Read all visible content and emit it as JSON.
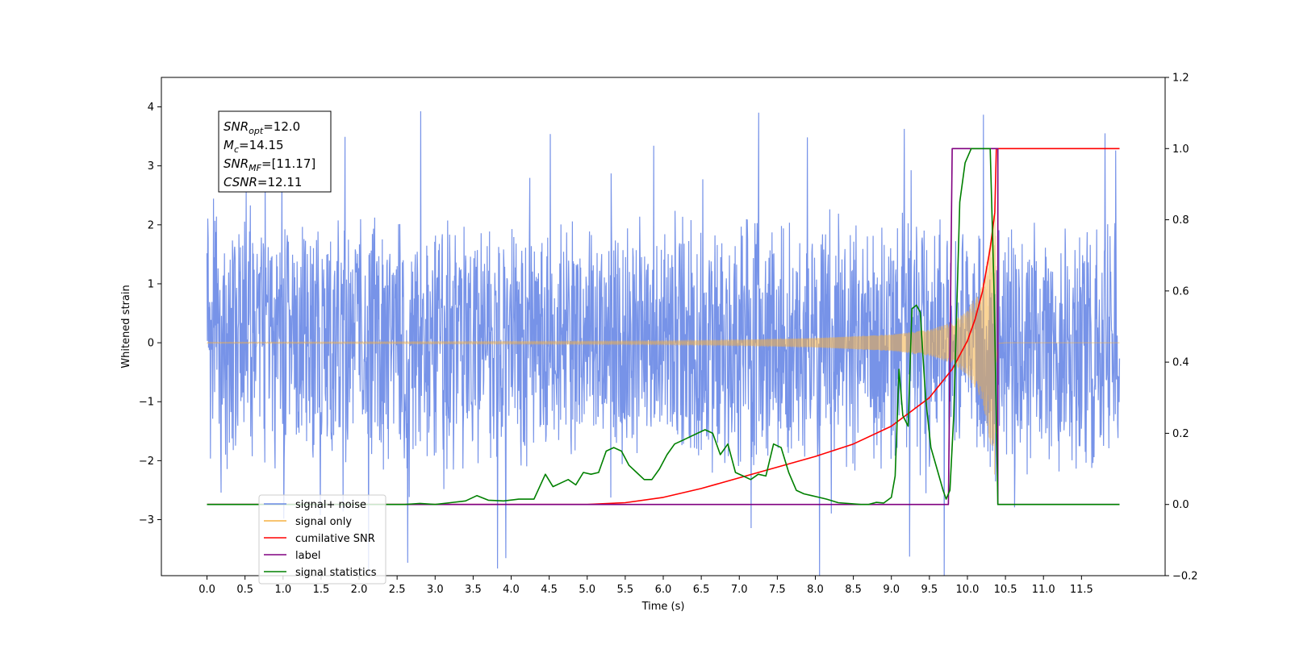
{
  "chart_data": {
    "type": "line",
    "xlabel": "Time (s)",
    "ylabel": "Whitened strain",
    "xlim": [
      -0.6,
      12.6
    ],
    "ylim_left": [
      -3.95,
      4.5
    ],
    "ylim_right": [
      -0.2,
      1.2
    ],
    "x_ticks": [
      0.0,
      0.5,
      1.0,
      1.5,
      2.0,
      2.5,
      3.0,
      3.5,
      4.0,
      4.5,
      5.0,
      5.5,
      6.0,
      6.5,
      7.0,
      7.5,
      8.0,
      8.5,
      9.0,
      9.5,
      10.0,
      10.5,
      11.0,
      11.5
    ],
    "x_tick_labels": [
      "0.0",
      "0.5",
      "1.0",
      "1.5",
      "2.0",
      "2.5",
      "3.0",
      "3.5",
      "4.0",
      "4.5",
      "5.0",
      "5.5",
      "6.0",
      "6.5",
      "7.0",
      "7.5",
      "8.0",
      "8.5",
      "9.0",
      "9.5",
      "10.0",
      "10.5",
      "11.0",
      "11.5"
    ],
    "y_left_ticks": [
      -3,
      -2,
      -1,
      0,
      1,
      2,
      3,
      4
    ],
    "y_left_tick_labels": [
      "−3",
      "−2",
      "−1",
      "0",
      "1",
      "2",
      "3",
      "4"
    ],
    "y_right_ticks": [
      -0.2,
      0.0,
      0.2,
      0.4,
      0.6,
      0.8,
      1.0,
      1.2
    ],
    "y_right_tick_labels": [
      "−0.2",
      "0.0",
      "0.2",
      "0.4",
      "0.6",
      "0.8",
      "1.0",
      "1.2"
    ],
    "grid": false,
    "legend_position": "lower-left",
    "annotation": {
      "lines": [
        {
          "base": "SNR",
          "sub": "opt",
          "rest": "=12.0"
        },
        {
          "base": "M",
          "sub": "c",
          "rest": "=14.15"
        },
        {
          "base": "SNR",
          "sub": "MF",
          "rest": "=[11.17]"
        },
        {
          "base": "CSNR",
          "sub": "",
          "rest": "=12.11"
        }
      ]
    },
    "series": [
      {
        "name": "signal+ noise",
        "axis": "left",
        "color": "#6b8ae6",
        "style": "noise",
        "x_range": [
          0.0,
          12.0
        ],
        "amplitude_typical": 2.3,
        "amplitude_max": 4.1
      },
      {
        "name": "signal only",
        "axis": "left",
        "color": "#f5b041",
        "style": "chirp",
        "merger_time": 10.38,
        "x_range": [
          0.0,
          12.0
        ],
        "envelope": [
          [
            0.0,
            0.01
          ],
          [
            6.0,
            0.03
          ],
          [
            7.0,
            0.05
          ],
          [
            8.0,
            0.08
          ],
          [
            9.0,
            0.14
          ],
          [
            9.5,
            0.22
          ],
          [
            9.8,
            0.35
          ],
          [
            10.0,
            0.55
          ],
          [
            10.2,
            1.0
          ],
          [
            10.3,
            1.7
          ],
          [
            10.36,
            2.4
          ],
          [
            10.4,
            0.05
          ],
          [
            10.5,
            0.0
          ],
          [
            12.0,
            0.0
          ]
        ]
      },
      {
        "name": "cumilative SNR",
        "axis": "right",
        "color": "#ff0000",
        "points": [
          [
            0.0,
            0.0
          ],
          [
            5.0,
            0.0
          ],
          [
            5.5,
            0.005
          ],
          [
            6.0,
            0.02
          ],
          [
            6.5,
            0.045
          ],
          [
            7.0,
            0.075
          ],
          [
            7.5,
            0.105
          ],
          [
            8.0,
            0.135
          ],
          [
            8.5,
            0.17
          ],
          [
            9.0,
            0.22
          ],
          [
            9.5,
            0.3
          ],
          [
            9.8,
            0.38
          ],
          [
            10.0,
            0.46
          ],
          [
            10.1,
            0.52
          ],
          [
            10.2,
            0.6
          ],
          [
            10.3,
            0.72
          ],
          [
            10.36,
            0.82
          ],
          [
            10.38,
            1.0
          ],
          [
            12.0,
            1.0
          ]
        ]
      },
      {
        "name": "label",
        "axis": "right",
        "color": "#800080",
        "points": [
          [
            0.0,
            0.0
          ],
          [
            9.75,
            0.0
          ],
          [
            9.8,
            1.0
          ],
          [
            10.4,
            1.0
          ],
          [
            10.4,
            0.0
          ],
          [
            12.0,
            0.0
          ]
        ]
      },
      {
        "name": "signal statistics",
        "axis": "right",
        "color": "#008000",
        "points": [
          [
            0.0,
            0.0
          ],
          [
            2.6,
            0.0
          ],
          [
            2.8,
            0.003
          ],
          [
            3.0,
            0.0
          ],
          [
            3.2,
            0.005
          ],
          [
            3.4,
            0.01
          ],
          [
            3.55,
            0.025
          ],
          [
            3.7,
            0.012
          ],
          [
            3.9,
            0.01
          ],
          [
            4.1,
            0.015
          ],
          [
            4.3,
            0.015
          ],
          [
            4.45,
            0.085
          ],
          [
            4.55,
            0.05
          ],
          [
            4.65,
            0.06
          ],
          [
            4.75,
            0.07
          ],
          [
            4.85,
            0.055
          ],
          [
            4.95,
            0.09
          ],
          [
            5.05,
            0.085
          ],
          [
            5.15,
            0.09
          ],
          [
            5.25,
            0.15
          ],
          [
            5.35,
            0.16
          ],
          [
            5.45,
            0.15
          ],
          [
            5.55,
            0.11
          ],
          [
            5.65,
            0.09
          ],
          [
            5.75,
            0.07
          ],
          [
            5.85,
            0.07
          ],
          [
            5.95,
            0.1
          ],
          [
            6.05,
            0.14
          ],
          [
            6.15,
            0.17
          ],
          [
            6.25,
            0.18
          ],
          [
            6.35,
            0.19
          ],
          [
            6.45,
            0.2
          ],
          [
            6.55,
            0.21
          ],
          [
            6.65,
            0.2
          ],
          [
            6.75,
            0.14
          ],
          [
            6.85,
            0.17
          ],
          [
            6.95,
            0.09
          ],
          [
            7.05,
            0.08
          ],
          [
            7.15,
            0.07
          ],
          [
            7.25,
            0.085
          ],
          [
            7.35,
            0.08
          ],
          [
            7.45,
            0.17
          ],
          [
            7.55,
            0.16
          ],
          [
            7.65,
            0.09
          ],
          [
            7.75,
            0.04
          ],
          [
            7.85,
            0.03
          ],
          [
            7.95,
            0.025
          ],
          [
            8.05,
            0.02
          ],
          [
            8.15,
            0.015
          ],
          [
            8.3,
            0.005
          ],
          [
            8.6,
            0.0
          ],
          [
            8.7,
            0.0
          ],
          [
            8.8,
            0.006
          ],
          [
            8.9,
            0.004
          ],
          [
            9.0,
            0.02
          ],
          [
            9.05,
            0.08
          ],
          [
            9.1,
            0.38
          ],
          [
            9.15,
            0.25
          ],
          [
            9.22,
            0.22
          ],
          [
            9.27,
            0.55
          ],
          [
            9.33,
            0.56
          ],
          [
            9.38,
            0.54
          ],
          [
            9.45,
            0.3
          ],
          [
            9.52,
            0.16
          ],
          [
            9.6,
            0.1
          ],
          [
            9.68,
            0.04
          ],
          [
            9.72,
            0.015
          ],
          [
            9.77,
            0.04
          ],
          [
            9.82,
            0.25
          ],
          [
            9.9,
            0.85
          ],
          [
            9.97,
            0.96
          ],
          [
            10.05,
            1.0
          ],
          [
            10.2,
            1.0
          ],
          [
            10.3,
            1.0
          ],
          [
            10.35,
            0.6
          ],
          [
            10.4,
            0.0
          ],
          [
            12.0,
            0.0
          ]
        ]
      }
    ]
  }
}
